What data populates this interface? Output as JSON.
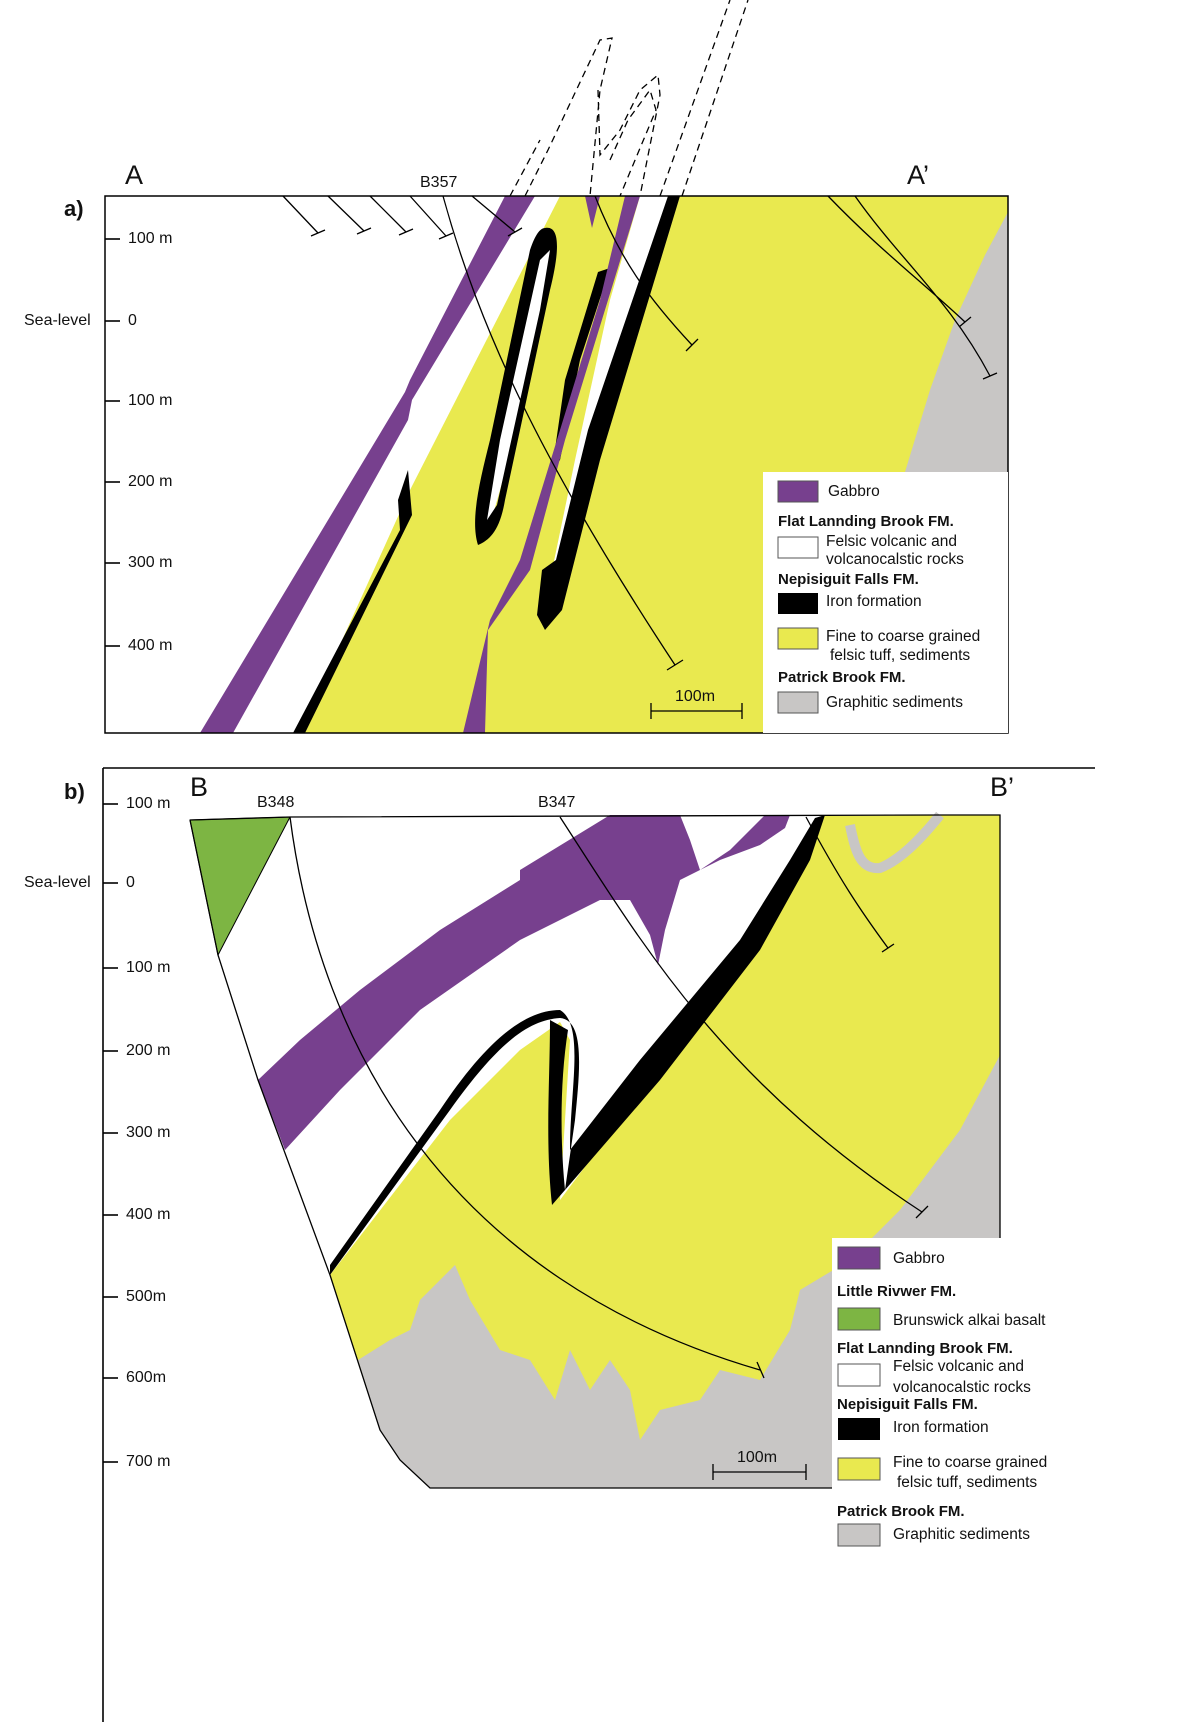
{
  "panels": [
    {
      "label": "a)",
      "section_start": "A",
      "section_end": "A’",
      "boreholes": [
        "B357"
      ],
      "depth_axis": {
        "reference": "Sea-level",
        "labels": [
          "100 m",
          "0",
          "100 m",
          "200 m",
          "300 m",
          "400 m"
        ]
      },
      "legend": [
        {
          "lines": [
            "Gabbro"
          ]
        },
        {
          "heading": "Flat Lannding Brook FM.",
          "lines": [
            "Felsic volcanic and",
            "volcanocalstic rocks"
          ]
        },
        {
          "heading": "Nepisiguit Falls FM.",
          "lines": [
            "Iron formation"
          ]
        },
        {
          "lines": [
            "Fine to coarse grained",
            "felsic tuff, sediments"
          ]
        },
        {
          "heading": "Patrick Brook FM.",
          "lines": [
            "Graphitic sediments"
          ]
        }
      ],
      "scale_bar": "100m"
    },
    {
      "label": "b)",
      "section_start": "B",
      "section_end": "B’",
      "boreholes": [
        "B348",
        "B347"
      ],
      "depth_axis": {
        "reference": "Sea-level",
        "labels": [
          "100 m",
          "0",
          "100 m",
          "200 m",
          "300 m",
          "400 m",
          "500m",
          "600m",
          "700 m"
        ]
      },
      "legend": [
        {
          "lines": [
            "Gabbro"
          ]
        },
        {
          "heading": "Little Rivwer FM.",
          "lines": [
            "Brunswick alkai basalt"
          ]
        },
        {
          "heading": "Flat Lannding Brook FM.",
          "lines": [
            "Felsic volcanic and",
            "volcanocalstic rocks"
          ]
        },
        {
          "heading": "Nepisiguit Falls FM.",
          "lines": [
            "Iron formation"
          ]
        },
        {
          "lines": [
            "Fine to coarse grained",
            "felsic tuff, sediments"
          ]
        },
        {
          "heading": "Patrick Brook FM.",
          "lines": [
            "Graphitic sediments"
          ]
        }
      ],
      "scale_bar": "100m"
    }
  ]
}
